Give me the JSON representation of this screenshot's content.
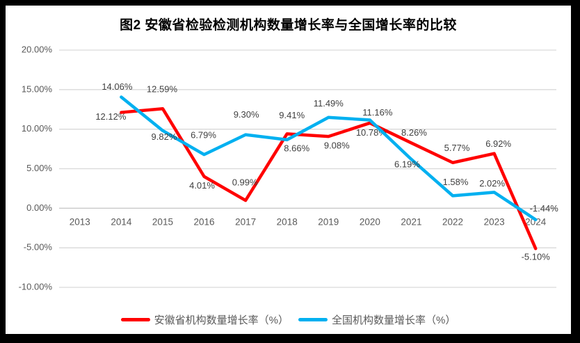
{
  "page": {
    "frame_color": "#000000",
    "chart_background": "#ffffff"
  },
  "chart_data": {
    "type": "line",
    "title": "图2 安徽省检验检测机构数量增长率与全国增长率的比较",
    "xlabel": "",
    "ylabel": "",
    "categories": [
      "2013",
      "2014",
      "2015",
      "2016",
      "2017",
      "2018",
      "2019",
      "2020",
      "2021",
      "2022",
      "2023",
      "2024"
    ],
    "y_axis": {
      "min": -10,
      "max": 20,
      "step": 5,
      "tick_labels": [
        "20.00%",
        "15.00%",
        "10.00%",
        "5.00%",
        "0.00%",
        "-5.00%",
        "-10.00%"
      ]
    },
    "grid": true,
    "gridline_color": "#d9d9d9",
    "zero_line_color": "#c9c9c9",
    "axis_label_color": "#595959",
    "data_label_color": "#404040",
    "legend_position": "bottom",
    "series": [
      {
        "name": "安徽省机构数量增长率（%）",
        "color": "#ff0000",
        "points": [
          {
            "x": "2014",
            "value": 12.12,
            "label": "12.12%",
            "dx": -15,
            "dy": 7
          },
          {
            "x": "2015",
            "value": 12.59,
            "label": "12.59%",
            "dx": -1,
            "dy": -27
          },
          {
            "x": "2016",
            "value": 4.01,
            "label": "4.01%",
            "dx": -3,
            "dy": 14
          },
          {
            "x": "2017",
            "value": 0.99,
            "label": "0.99%",
            "dx": -1,
            "dy": -25
          },
          {
            "x": "2018",
            "value": 9.41,
            "label": "9.41%",
            "dx": 7,
            "dy": -26
          },
          {
            "x": "2019",
            "value": 9.08,
            "label": "9.08%",
            "dx": 12,
            "dy": 14
          },
          {
            "x": "2020",
            "value": 10.78,
            "label": "10.78%",
            "dx": 2,
            "dy": 15
          },
          {
            "x": "2021",
            "value": 8.26,
            "label": "8.26%",
            "dx": 4,
            "dy": -14
          },
          {
            "x": "2022",
            "value": 5.77,
            "label": "5.77%",
            "dx": 6,
            "dy": -20
          },
          {
            "x": "2023",
            "value": 6.92,
            "label": "6.92%",
            "dx": 6,
            "dy": -13
          },
          {
            "x": "2024",
            "value": -5.1,
            "label": "-5.10%",
            "dx": 0,
            "dy": 13
          }
        ]
      },
      {
        "name": "全国机构数量增长率（%）",
        "color": "#00b0f0",
        "points": [
          {
            "x": "2014",
            "value": 14.06,
            "label": "14.06%",
            "dx": -6,
            "dy": -14
          },
          {
            "x": "2015",
            "value": 9.82,
            "label": "9.82%",
            "dx": 2,
            "dy": 10
          },
          {
            "x": "2016",
            "value": 6.79,
            "label": "6.79%",
            "dx": -1,
            "dy": -27
          },
          {
            "x": "2017",
            "value": 9.3,
            "label": "9.30%",
            "dx": 1,
            "dy": -28
          },
          {
            "x": "2018",
            "value": 8.66,
            "label": "8.66%",
            "dx": 14,
            "dy": 13
          },
          {
            "x": "2019",
            "value": 11.49,
            "label": "11.49%",
            "dx": 0,
            "dy": -19
          },
          {
            "x": "2020",
            "value": 11.16,
            "label": "11.16%",
            "dx": 11,
            "dy": -10
          },
          {
            "x": "2021",
            "value": 6.19,
            "label": "6.19%",
            "dx": -6,
            "dy": 8
          },
          {
            "x": "2022",
            "value": 1.58,
            "label": "1.58%",
            "dx": 4,
            "dy": -19
          },
          {
            "x": "2023",
            "value": 2.02,
            "label": "2.02%",
            "dx": -3,
            "dy": -12
          },
          {
            "x": "2024",
            "value": -1.44,
            "label": "-1.44%",
            "dx": 12,
            "dy": -15
          }
        ]
      }
    ]
  }
}
